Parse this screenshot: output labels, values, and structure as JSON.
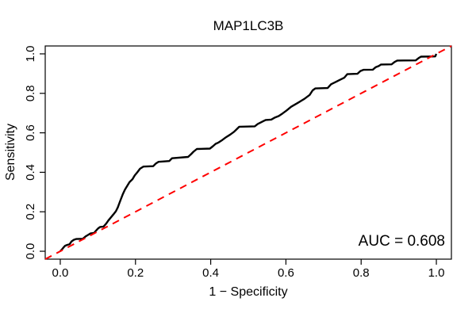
{
  "chart_data": {
    "type": "line",
    "title": "MAP1LC3B",
    "xlabel": "1 − Specificity",
    "ylabel": "Sensitivity",
    "annotation": "AUC = 0.608",
    "auc": 0.608,
    "xlim": [
      -0.04,
      1.04
    ],
    "ylim": [
      -0.04,
      1.04
    ],
    "grid": false,
    "legend": "none",
    "x_ticks": [
      0.0,
      0.2,
      0.4,
      0.6,
      0.8,
      1.0
    ],
    "y_ticks": [
      0.0,
      0.2,
      0.4,
      0.6,
      0.8,
      1.0
    ],
    "x_tick_labels": [
      "0.0",
      "0.2",
      "0.4",
      "0.6",
      "0.8",
      "1.0"
    ],
    "y_tick_labels": [
      "0.0",
      "0.2",
      "0.4",
      "0.6",
      "0.8",
      "1.0"
    ],
    "series": [
      {
        "name": "roc-curve",
        "color": "#000000",
        "style": "solid",
        "width": 2.4,
        "points": [
          [
            0.0,
            0.0
          ],
          [
            0.004,
            0.008
          ],
          [
            0.008,
            0.018
          ],
          [
            0.013,
            0.028
          ],
          [
            0.018,
            0.032
          ],
          [
            0.025,
            0.036
          ],
          [
            0.03,
            0.05
          ],
          [
            0.036,
            0.058
          ],
          [
            0.042,
            0.062
          ],
          [
            0.06,
            0.063
          ],
          [
            0.068,
            0.076
          ],
          [
            0.075,
            0.084
          ],
          [
            0.08,
            0.09
          ],
          [
            0.09,
            0.093
          ],
          [
            0.096,
            0.106
          ],
          [
            0.101,
            0.116
          ],
          [
            0.106,
            0.123
          ],
          [
            0.115,
            0.125
          ],
          [
            0.122,
            0.14
          ],
          [
            0.128,
            0.156
          ],
          [
            0.134,
            0.17
          ],
          [
            0.141,
            0.186
          ],
          [
            0.148,
            0.203
          ],
          [
            0.153,
            0.222
          ],
          [
            0.157,
            0.243
          ],
          [
            0.161,
            0.263
          ],
          [
            0.166,
            0.288
          ],
          [
            0.172,
            0.312
          ],
          [
            0.184,
            0.35
          ],
          [
            0.192,
            0.365
          ],
          [
            0.198,
            0.384
          ],
          [
            0.205,
            0.4
          ],
          [
            0.212,
            0.418
          ],
          [
            0.221,
            0.429
          ],
          [
            0.247,
            0.431
          ],
          [
            0.254,
            0.444
          ],
          [
            0.261,
            0.453
          ],
          [
            0.29,
            0.457
          ],
          [
            0.297,
            0.471
          ],
          [
            0.34,
            0.478
          ],
          [
            0.348,
            0.492
          ],
          [
            0.354,
            0.504
          ],
          [
            0.363,
            0.518
          ],
          [
            0.398,
            0.52
          ],
          [
            0.406,
            0.532
          ],
          [
            0.413,
            0.544
          ],
          [
            0.421,
            0.551
          ],
          [
            0.431,
            0.564
          ],
          [
            0.441,
            0.578
          ],
          [
            0.452,
            0.591
          ],
          [
            0.462,
            0.605
          ],
          [
            0.469,
            0.618
          ],
          [
            0.476,
            0.631
          ],
          [
            0.517,
            0.633
          ],
          [
            0.525,
            0.645
          ],
          [
            0.539,
            0.658
          ],
          [
            0.546,
            0.665
          ],
          [
            0.561,
            0.667
          ],
          [
            0.571,
            0.678
          ],
          [
            0.581,
            0.685
          ],
          [
            0.591,
            0.698
          ],
          [
            0.601,
            0.712
          ],
          [
            0.614,
            0.732
          ],
          [
            0.632,
            0.752
          ],
          [
            0.649,
            0.772
          ],
          [
            0.663,
            0.792
          ],
          [
            0.671,
            0.815
          ],
          [
            0.678,
            0.825
          ],
          [
            0.711,
            0.827
          ],
          [
            0.72,
            0.846
          ],
          [
            0.734,
            0.859
          ],
          [
            0.741,
            0.866
          ],
          [
            0.755,
            0.879
          ],
          [
            0.763,
            0.897
          ],
          [
            0.79,
            0.899
          ],
          [
            0.798,
            0.913
          ],
          [
            0.806,
            0.919
          ],
          [
            0.831,
            0.92
          ],
          [
            0.839,
            0.933
          ],
          [
            0.847,
            0.939
          ],
          [
            0.853,
            0.946
          ],
          [
            0.881,
            0.947
          ],
          [
            0.889,
            0.959
          ],
          [
            0.896,
            0.966
          ],
          [
            0.945,
            0.967
          ],
          [
            0.953,
            0.979
          ],
          [
            0.959,
            0.986
          ],
          [
            0.997,
            0.987
          ],
          [
            1.0,
            1.0
          ]
        ]
      },
      {
        "name": "reference-diagonal",
        "color": "#ff0000",
        "style": "dashed",
        "width": 2,
        "points": [
          [
            -0.04,
            -0.04
          ],
          [
            1.04,
            1.04
          ]
        ]
      }
    ]
  },
  "colors": {
    "curve": "#000000",
    "reference": "#ff0000",
    "axis": "#000000",
    "background": "#ffffff"
  }
}
